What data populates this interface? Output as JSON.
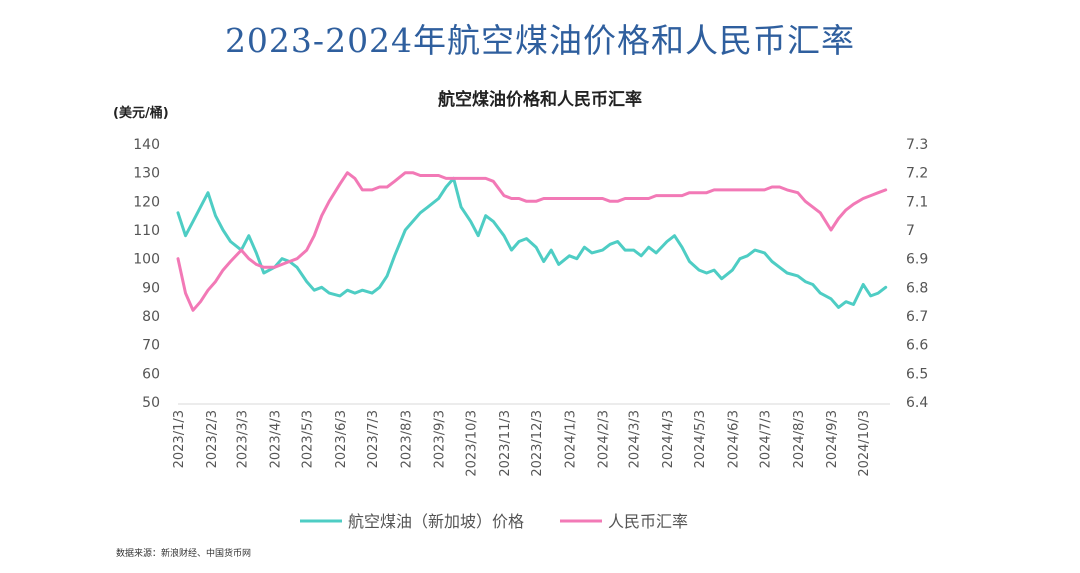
{
  "page": {
    "title": "2023-2024年航空煤油价格和人民币汇率",
    "source": "数据来源：新浪财经、中国货币网"
  },
  "chart_data": {
    "type": "line",
    "title": "航空煤油价格和人民币汇率",
    "y_left_unit": "(美元/桶)",
    "y_left_range": [
      50,
      140
    ],
    "y_left_ticks": [
      "50",
      "60",
      "70",
      "80",
      "90",
      "100",
      "110",
      "120",
      "130",
      "140"
    ],
    "y_right_range": [
      6.4,
      7.3
    ],
    "y_right_ticks": [
      "6.4",
      "6.5",
      "6.6",
      "6.7",
      "6.8",
      "6.9",
      "7",
      "7.1",
      "7.2",
      "7.3"
    ],
    "x_ticks": [
      "2023/1/3",
      "2023/2/3",
      "2023/3/3",
      "2023/4/3",
      "2023/5/3",
      "2023/6/3",
      "2023/7/3",
      "2023/8/3",
      "2023/9/3",
      "2023/10/3",
      "2023/11/3",
      "2023/12/3",
      "2024/1/3",
      "2024/2/3",
      "2024/3/3",
      "2024/4/3",
      "2024/5/3",
      "2024/6/3",
      "2024/7/3",
      "2024/8/3",
      "2024/9/3",
      "2024/10/3"
    ],
    "legend_position": "bottom",
    "series": [
      {
        "name": "航空煤油（新加坡）价格",
        "axis": "left",
        "color": "#4ecdc4",
        "x": [
          "2023/1/3",
          "2023/1/10",
          "2023/1/17",
          "2023/1/24",
          "2023/1/31",
          "2023/2/7",
          "2023/2/14",
          "2023/2/21",
          "2023/3/3",
          "2023/3/10",
          "2023/3/17",
          "2023/3/24",
          "2023/4/3",
          "2023/4/10",
          "2023/4/17",
          "2023/4/24",
          "2023/5/3",
          "2023/5/10",
          "2023/5/17",
          "2023/5/24",
          "2023/6/3",
          "2023/6/10",
          "2023/6/17",
          "2023/6/24",
          "2023/7/3",
          "2023/7/10",
          "2023/7/17",
          "2023/7/24",
          "2023/8/3",
          "2023/8/10",
          "2023/8/17",
          "2023/8/24",
          "2023/9/3",
          "2023/9/10",
          "2023/9/17",
          "2023/9/24",
          "2023/10/3",
          "2023/10/10",
          "2023/10/17",
          "2023/10/24",
          "2023/11/3",
          "2023/11/10",
          "2023/11/17",
          "2023/11/24",
          "2023/12/3",
          "2023/12/10",
          "2023/12/17",
          "2023/12/24",
          "2024/1/3",
          "2024/1/10",
          "2024/1/17",
          "2024/1/24",
          "2024/2/3",
          "2024/2/10",
          "2024/2/17",
          "2024/2/24",
          "2024/3/3",
          "2024/3/10",
          "2024/3/17",
          "2024/3/24",
          "2024/4/3",
          "2024/4/10",
          "2024/4/17",
          "2024/4/24",
          "2024/5/3",
          "2024/5/10",
          "2024/5/17",
          "2024/5/24",
          "2024/6/3",
          "2024/6/10",
          "2024/6/17",
          "2024/6/24",
          "2024/7/3",
          "2024/7/10",
          "2024/7/17",
          "2024/7/24",
          "2024/8/3",
          "2024/8/10",
          "2024/8/17",
          "2024/8/24",
          "2024/9/3",
          "2024/9/10",
          "2024/9/17",
          "2024/9/24",
          "2024/10/3",
          "2024/10/10",
          "2024/10/17",
          "2024/10/24"
        ],
        "values": [
          116,
          108,
          113,
          118,
          123,
          115,
          110,
          106,
          103,
          108,
          102,
          95,
          97,
          100,
          99,
          97,
          92,
          89,
          90,
          88,
          87,
          89,
          88,
          89,
          88,
          90,
          94,
          101,
          110,
          113,
          116,
          118,
          121,
          125,
          128,
          118,
          113,
          108,
          115,
          113,
          108,
          103,
          106,
          107,
          104,
          99,
          103,
          98,
          101,
          100,
          104,
          102,
          103,
          105,
          106,
          103,
          103,
          101,
          104,
          102,
          106,
          108,
          104,
          99,
          96,
          95,
          96,
          93,
          96,
          100,
          101,
          103,
          102,
          99,
          97,
          95,
          94,
          92,
          91,
          88,
          86,
          83,
          85,
          84,
          91,
          87,
          88,
          90
        ]
      },
      {
        "name": "人民币汇率",
        "axis": "right",
        "color": "#f279b6",
        "x": [
          "2023/1/3",
          "2023/1/10",
          "2023/1/17",
          "2023/1/24",
          "2023/1/31",
          "2023/2/7",
          "2023/2/14",
          "2023/2/21",
          "2023/3/3",
          "2023/3/10",
          "2023/3/17",
          "2023/3/24",
          "2023/4/3",
          "2023/4/10",
          "2023/4/17",
          "2023/4/24",
          "2023/5/3",
          "2023/5/10",
          "2023/5/17",
          "2023/5/24",
          "2023/6/3",
          "2023/6/10",
          "2023/6/17",
          "2023/6/24",
          "2023/7/3",
          "2023/7/10",
          "2023/7/17",
          "2023/7/24",
          "2023/8/3",
          "2023/8/10",
          "2023/8/17",
          "2023/8/24",
          "2023/9/3",
          "2023/9/10",
          "2023/9/17",
          "2023/9/24",
          "2023/10/3",
          "2023/10/10",
          "2023/10/17",
          "2023/10/24",
          "2023/11/3",
          "2023/11/10",
          "2023/11/17",
          "2023/11/24",
          "2023/12/3",
          "2023/12/10",
          "2023/12/17",
          "2023/12/24",
          "2024/1/3",
          "2024/1/10",
          "2024/1/17",
          "2024/1/24",
          "2024/2/3",
          "2024/2/10",
          "2024/2/17",
          "2024/2/24",
          "2024/3/3",
          "2024/3/10",
          "2024/3/17",
          "2024/3/24",
          "2024/4/3",
          "2024/4/10",
          "2024/4/17",
          "2024/4/24",
          "2024/5/3",
          "2024/5/10",
          "2024/5/17",
          "2024/5/24",
          "2024/6/3",
          "2024/6/10",
          "2024/6/17",
          "2024/6/24",
          "2024/7/3",
          "2024/7/10",
          "2024/7/17",
          "2024/7/24",
          "2024/8/3",
          "2024/8/10",
          "2024/8/17",
          "2024/8/24",
          "2024/9/3",
          "2024/9/10",
          "2024/9/17",
          "2024/9/24",
          "2024/10/3",
          "2024/10/10",
          "2024/10/17",
          "2024/10/24"
        ],
        "values": [
          6.9,
          6.78,
          6.72,
          6.75,
          6.79,
          6.82,
          6.86,
          6.89,
          6.93,
          6.9,
          6.88,
          6.87,
          6.87,
          6.88,
          6.89,
          6.9,
          6.93,
          6.98,
          7.05,
          7.1,
          7.16,
          7.2,
          7.18,
          7.14,
          7.14,
          7.15,
          7.15,
          7.17,
          7.2,
          7.2,
          7.19,
          7.19,
          7.19,
          7.18,
          7.18,
          7.18,
          7.18,
          7.18,
          7.18,
          7.17,
          7.12,
          7.11,
          7.11,
          7.1,
          7.1,
          7.11,
          7.11,
          7.11,
          7.11,
          7.11,
          7.11,
          7.11,
          7.11,
          7.1,
          7.1,
          7.11,
          7.11,
          7.11,
          7.11,
          7.12,
          7.12,
          7.12,
          7.12,
          7.13,
          7.13,
          7.13,
          7.14,
          7.14,
          7.14,
          7.14,
          7.14,
          7.14,
          7.14,
          7.15,
          7.15,
          7.14,
          7.13,
          7.1,
          7.08,
          7.06,
          7.0,
          7.04,
          7.07,
          7.09,
          7.11,
          7.12,
          7.13,
          7.14
        ]
      }
    ]
  }
}
